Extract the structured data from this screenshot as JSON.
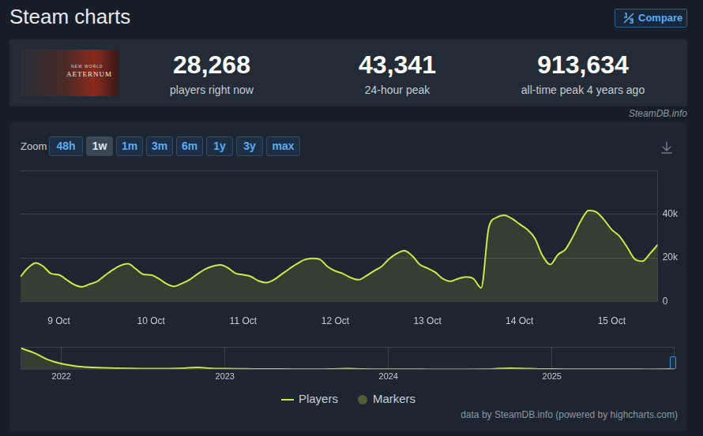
{
  "page": {
    "title": "Steam charts",
    "compare": "Compare",
    "logo_text": [
      "NEW WORLD",
      "AETERNUM"
    ],
    "source_top": "SteamDB.info",
    "zoom_label": "Zoom",
    "zoom_buttons": [
      "48h",
      "1w",
      "1m",
      "3m",
      "6m",
      "1y",
      "3y",
      "max"
    ],
    "zoom_active": "1w",
    "footer": "data by SteamDB.info (powered by highcharts.com)"
  },
  "stats": [
    {
      "value": "28,268",
      "label": "players right now"
    },
    {
      "value": "43,341",
      "label": "24-hour peak"
    },
    {
      "value": "913,634",
      "label": "all-time peak 4 years ago"
    }
  ],
  "chart_data": [
    {
      "type": "area",
      "categories": [
        null,
        null,
        null,
        null,
        null,
        "9 Oct",
        null,
        null,
        null,
        null,
        null,
        null,
        null,
        null,
        null,
        null,
        null,
        "10 Oct",
        null,
        null,
        null,
        null,
        null,
        null,
        null,
        null,
        null,
        null,
        null,
        "11 Oct",
        null,
        null,
        null,
        null,
        null,
        null,
        null,
        null,
        null,
        null,
        null,
        "12 Oct",
        null,
        null,
        null,
        null,
        null,
        null,
        null,
        null,
        null,
        null,
        null,
        "13 Oct",
        null,
        null,
        null,
        null,
        null,
        null,
        null,
        null,
        null,
        null,
        null,
        "14 Oct",
        null,
        null,
        null,
        null,
        null,
        null,
        null,
        null,
        null,
        null,
        null,
        "15 Oct",
        null,
        null,
        null,
        null,
        null,
        null
      ],
      "series": [
        {
          "name": "Players",
          "color": "#c8ec45",
          "line_style": "solid",
          "values": [
            11500,
            15500,
            17700,
            16000,
            12800,
            12300,
            10000,
            7800,
            6800,
            8000,
            9300,
            12000,
            14500,
            16500,
            17300,
            15000,
            12500,
            12200,
            10500,
            8200,
            7000,
            8300,
            10000,
            12500,
            14800,
            16200,
            16800,
            15500,
            13000,
            12300,
            11500,
            9500,
            8700,
            10000,
            12500,
            15000,
            17300,
            19200,
            19800,
            19300,
            16000,
            14000,
            12800,
            11000,
            10000,
            11700,
            14000,
            16000,
            19500,
            22000,
            23300,
            21000,
            17000,
            15300,
            13500,
            10500,
            9300,
            10500,
            11300,
            10500,
            6300,
            34000,
            38500,
            39500,
            38000,
            35500,
            33000,
            29000,
            21000,
            17000,
            21500,
            24000,
            30000,
            37000,
            41700,
            41000,
            37500,
            33000,
            30000,
            25000,
            19500,
            18500,
            22000,
            26000
          ]
        },
        {
          "name": "Markers",
          "color": "#4d5c34",
          "marker": "circle",
          "values": [
            null,
            null,
            null,
            null,
            null,
            null,
            null,
            null,
            null,
            null,
            null,
            null,
            null,
            null,
            null,
            null,
            null,
            null,
            null,
            null,
            null,
            null,
            null,
            null,
            null,
            null,
            null,
            null,
            null,
            null,
            null,
            null,
            null,
            null,
            null,
            null,
            null,
            null,
            null,
            null,
            null,
            null,
            null,
            null,
            null,
            null,
            null,
            null,
            null,
            null,
            null,
            null,
            null,
            null,
            null,
            null,
            null,
            null,
            null,
            null,
            null,
            null,
            null,
            null,
            null,
            null,
            null,
            null,
            null,
            null,
            null,
            null,
            null,
            null,
            null,
            null,
            null,
            null,
            null,
            null,
            null,
            null,
            null,
            null
          ]
        }
      ],
      "ylim": [
        0,
        60000
      ],
      "yticks": [
        0,
        {
          "value": 20000,
          "label": "20k"
        },
        {
          "value": 40000,
          "label": "40k"
        }
      ],
      "grid": true,
      "legend": "bottom"
    },
    {
      "type": "area",
      "categories": [
        null,
        null,
        null,
        "2022",
        null,
        null,
        null,
        null,
        null,
        null,
        null,
        null,
        null,
        null,
        null,
        "2023",
        null,
        null,
        null,
        null,
        null,
        null,
        null,
        null,
        null,
        null,
        null,
        "2024",
        null,
        null,
        null,
        null,
        null,
        null,
        null,
        null,
        null,
        null,
        null,
        "2025",
        null,
        null,
        null,
        null,
        null,
        null,
        null,
        null,
        null
      ],
      "series": [
        {
          "name": "Players",
          "color": "#c8ec45",
          "line_style": "solid",
          "values": [
            900000,
            700000,
            420000,
            250000,
            150000,
            100000,
            75000,
            60000,
            50000,
            45000,
            40000,
            45000,
            60000,
            90000,
            55000,
            40000,
            35000,
            30000,
            28000,
            25000,
            22000,
            20000,
            18000,
            30000,
            45000,
            25000,
            20000,
            18000,
            16000,
            15000,
            14000,
            14000,
            13000,
            13000,
            15000,
            40000,
            60000,
            45000,
            30000,
            25000,
            20000,
            18000,
            17000,
            16000,
            15000,
            15000,
            14000,
            15000,
            30000
          ]
        }
      ],
      "ylim": [
        0,
        950000
      ],
      "grid": true,
      "tick_labels": "x"
    }
  ]
}
